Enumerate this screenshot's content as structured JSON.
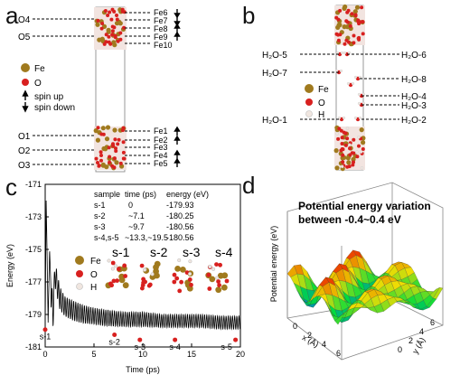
{
  "panel_labels": {
    "a": "a",
    "b": "b",
    "c": "c",
    "d": "d"
  },
  "panel_a": {
    "left_labels": [
      "O4",
      "O5",
      "O1",
      "O2",
      "O3"
    ],
    "right_labels_top": [
      "Fe6",
      "Fe7",
      "Fe8",
      "Fe9",
      "Fe10"
    ],
    "right_labels_bottom": [
      "Fe1",
      "Fe2",
      "Fe3",
      "Fe4",
      "Fe5"
    ],
    "legend": {
      "fe": "Fe",
      "o": "O",
      "spin_up": "spin up",
      "spin_down": "spin down"
    }
  },
  "panel_b": {
    "left_labels": [
      "H₂O-5",
      "H₂O-7",
      "H₂O-1"
    ],
    "right_labels": [
      "H₂O-6",
      "H₂O-8",
      "H₂O-4",
      "H₂O-3",
      "H₂O-2"
    ],
    "legend": {
      "fe": "Fe",
      "o": "O",
      "h": "H"
    }
  },
  "panel_c": {
    "table_header": [
      "sample",
      "time (ps)",
      "energy (eV)"
    ],
    "table_rows": [
      [
        "s-1",
        "0",
        "-179.93"
      ],
      [
        "s-2",
        "~7.1",
        "-180.25"
      ],
      [
        "s-3",
        "~9.7",
        "-180.56"
      ],
      [
        "s-4,s-5",
        "~13.3,~19.5",
        "-180.56"
      ]
    ],
    "snapshot_labels": [
      "s-1",
      "s-2",
      "s-3",
      "s-4"
    ],
    "legend": {
      "fe": "Fe",
      "o": "O",
      "h": "H"
    }
  },
  "panel_d": {
    "annotation_line1": "Potential energy  variation",
    "annotation_line2": "between -0.4~0.4 eV"
  },
  "colors": {
    "fe": "#a07a1e",
    "o": "#d8201f",
    "h": "#f0e6e0",
    "line": "#000000",
    "sample_point": "#d8201f"
  },
  "chart_data": [
    {
      "type": "line",
      "xlabel": "Time (ps)",
      "ylabel": "Energy (eV)",
      "xlim": [
        0,
        20
      ],
      "ylim": [
        -181,
        -171
      ],
      "xticks": [
        0,
        5,
        10,
        15,
        20
      ],
      "yticks": [
        -171,
        -173,
        -175,
        -177,
        -179,
        -181
      ],
      "series": [
        {
          "x": [
            0,
            0.05,
            0.1,
            0.2,
            0.3,
            0.45,
            0.6,
            0.8,
            1.0,
            1.5,
            2,
            3,
            4,
            5,
            6,
            8,
            10,
            12,
            14,
            16,
            18,
            20
          ],
          "y": [
            -179.9,
            -176.0,
            -172.0,
            -175.5,
            -179.5,
            -175.0,
            -177.5,
            -179.0,
            -176.5,
            -178.0,
            -178.5,
            -178.8,
            -179.0,
            -179.1,
            -179.2,
            -179.3,
            -179.3,
            -179.4,
            -179.4,
            -179.4,
            -179.5,
            -179.5
          ],
          "oscillation_amplitude": [
            3.5,
            3.0,
            2.5,
            2.0,
            1.5,
            1.2,
            1.0,
            0.9,
            0.8,
            0.7,
            0.6,
            0.6,
            0.55,
            0.5,
            0.5,
            0.45,
            0.45,
            0.4,
            0.4,
            0.4,
            0.4,
            0.4
          ]
        }
      ],
      "points": [
        {
          "label": "s-1",
          "x": 0,
          "y": -179.93
        },
        {
          "label": "s-2",
          "x": 7.1,
          "y": -180.25
        },
        {
          "label": "s-3",
          "x": 9.7,
          "y": -180.56
        },
        {
          "label": "s-4",
          "x": 13.3,
          "y": -180.56
        },
        {
          "label": "s-5",
          "x": 19.5,
          "y": -180.56
        }
      ]
    },
    {
      "type": "surface",
      "zlabel": "Potential energy (eV)",
      "xlabel": "x (Å)",
      "ylabel": "y (Å)",
      "xticks": [
        0,
        2,
        4,
        6
      ],
      "yticks": [
        0,
        2,
        4,
        6
      ],
      "zrange": [
        -0.4,
        0.4
      ]
    }
  ]
}
